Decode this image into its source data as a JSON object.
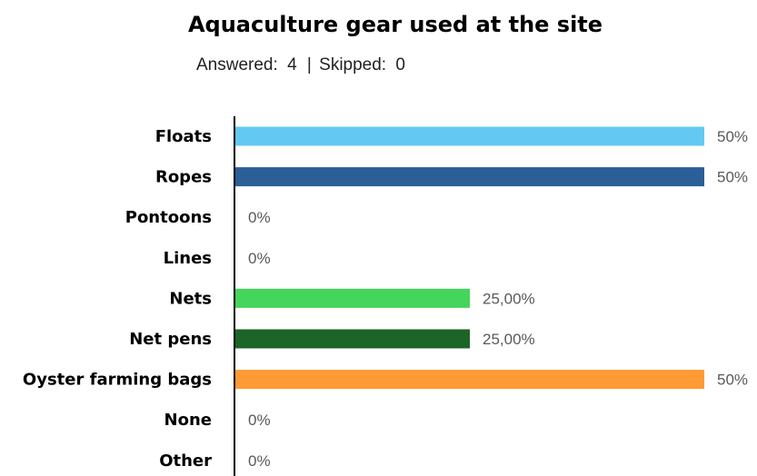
{
  "chart_data": {
    "type": "bar",
    "orientation": "horizontal",
    "title": "Aquaculture gear used at the site",
    "subtitle": {
      "answered_label": "Answered:",
      "answered": "4",
      "separator": "|",
      "skipped_label": "Skipped:",
      "skipped": "0"
    },
    "categories": [
      "Floats",
      "Ropes",
      "Pontoons",
      "Lines",
      "Nets",
      "Net pens",
      "Oyster farming bags",
      "None",
      "Other"
    ],
    "values": [
      50,
      50,
      0,
      0,
      25,
      25,
      50,
      0,
      0
    ],
    "value_labels": [
      "50%",
      "50%",
      "0%",
      "0%",
      "25,00%",
      "25,00%",
      "50%",
      "0%",
      "0%"
    ],
    "colors": [
      "#63C9F2",
      "#2A5F98",
      "#63C9F2",
      "#63C9F2",
      "#44D55D",
      "#1C6427",
      "#FF9A35",
      "#63C9F2",
      "#63C9F2"
    ],
    "xlim": [
      0,
      50
    ],
    "grid": false,
    "legend": "none",
    "axis_color": "#000000"
  }
}
